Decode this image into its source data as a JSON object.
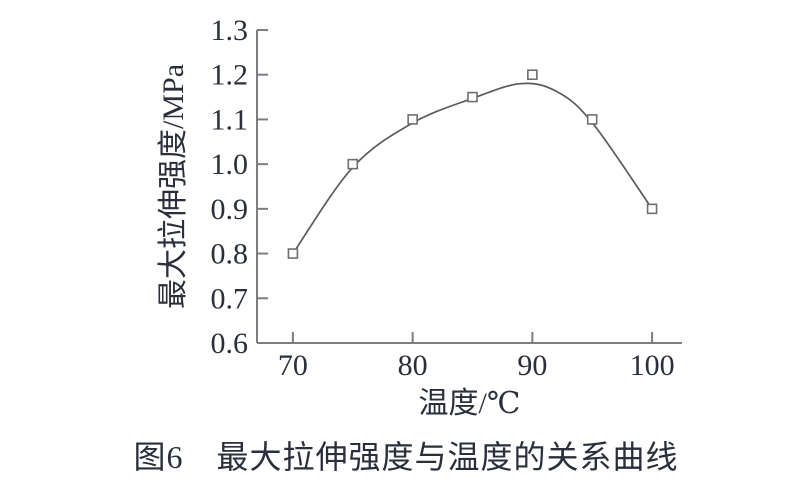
{
  "figure": {
    "caption": "图6　最大拉伸强度与温度的关系曲线"
  },
  "chart_data": {
    "type": "scatter",
    "title": "",
    "xlabel": "温度/℃",
    "ylabel": "最大拉伸强度/MPa",
    "x": [
      70,
      75,
      80,
      85,
      90,
      95,
      100
    ],
    "y": [
      0.8,
      1.0,
      1.1,
      1.15,
      1.2,
      1.1,
      0.9
    ],
    "series_name": "最大拉伸强度",
    "marker": "open-square",
    "fit_curve": [
      [
        70,
        0.8
      ],
      [
        75,
        0.993
      ],
      [
        80,
        1.092
      ],
      [
        85,
        1.147
      ],
      [
        89,
        1.18
      ],
      [
        92,
        1.163
      ],
      [
        95,
        1.093
      ],
      [
        100,
        0.9
      ]
    ],
    "xlim": [
      67,
      102.5
    ],
    "ylim": [
      0.6,
      1.3
    ],
    "x_ticks": [
      70,
      80,
      90,
      100
    ],
    "y_ticks": [
      0.6,
      0.7,
      0.8,
      0.9,
      1.0,
      1.1,
      1.2,
      1.3
    ],
    "grid": false,
    "legend": false,
    "colors": {
      "text": "#2a2e3d",
      "axis": "#7d7e82",
      "curve": "#595a5f",
      "marker": "#6e6f73",
      "marker_fill": "#ffffff"
    }
  }
}
